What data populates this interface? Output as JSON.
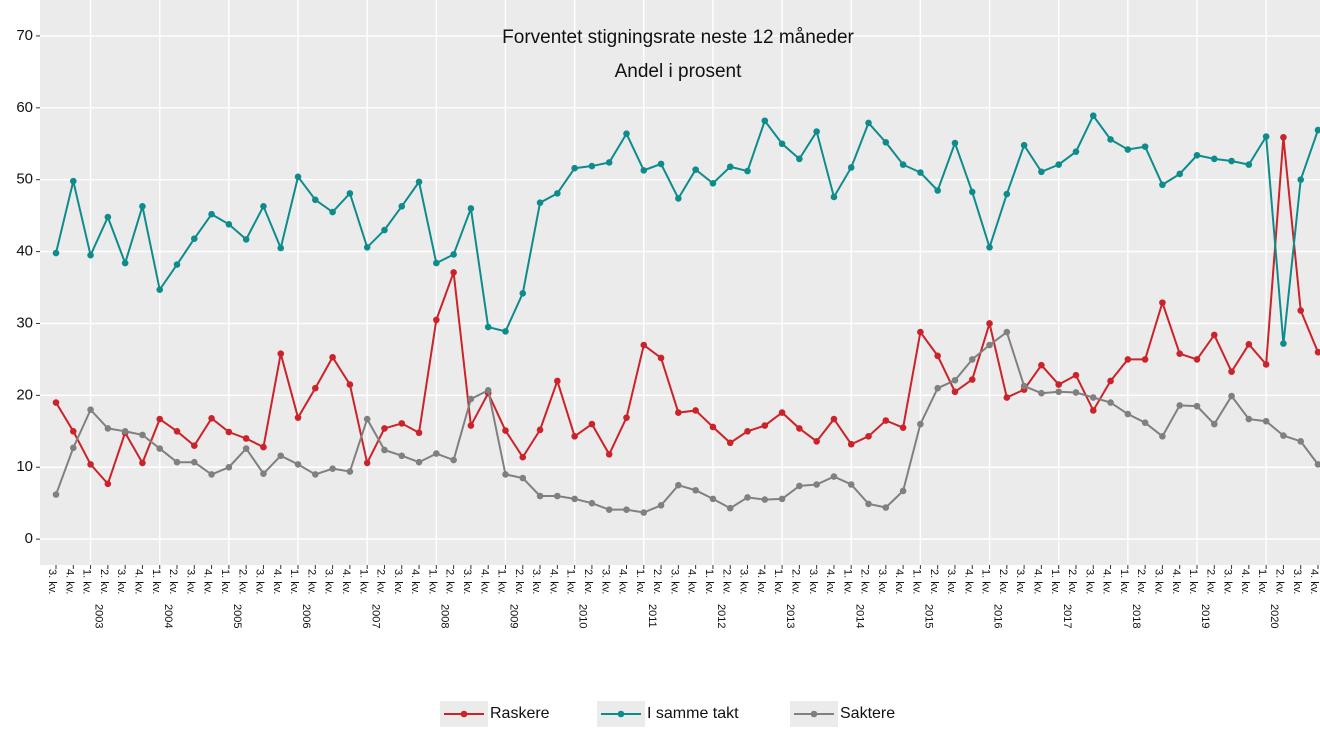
{
  "chart_data": {
    "type": "line",
    "title": "Forventet stigningsrate neste 12 måneder",
    "subtitle": "Andel i prosent",
    "categories": [
      "3. kv.",
      "4. kv.",
      "1. kv.",
      "2. kv.",
      "3. kv.",
      "4. kv.",
      "1. kv.",
      "2. kv.",
      "3. kv.",
      "4. kv.",
      "1. kv.",
      "2. kv.",
      "3. kv.",
      "4. kv.",
      "1. kv.",
      "2. kv.",
      "3. kv.",
      "4. kv.",
      "1. kv.",
      "2. kv.",
      "3. kv.",
      "4. kv.",
      "1. kv.",
      "2. kv.",
      "3. kv.",
      "4. kv.",
      "1. kv.",
      "2. kv.",
      "3. kv.",
      "4. kv.",
      "1. kv.",
      "2. kv.",
      "3. kv.",
      "4. kv.",
      "1. kv.",
      "2. kv.",
      "3. kv.",
      "4. kv.",
      "1. kv.",
      "2. kv.",
      "3. kv.",
      "4. kv.",
      "1. kv.",
      "2. kv.",
      "3. kv.",
      "4. kv.",
      "1. kv.",
      "2. kv.",
      "3. kv.",
      "4. kv.",
      "1. kv.",
      "2. kv.",
      "3. kv.",
      "4. kv.",
      "1. kv.",
      "2. kv.",
      "3. kv.",
      "4. kv.",
      "1. kv.",
      "2. kv.",
      "3. kv.",
      "4. kv.",
      "1. kv.",
      "2. kv.",
      "3. kv.",
      "4. kv.",
      "1. kv.",
      "2. kv.",
      "3. kv.",
      "4. kv.",
      "1. kv.",
      "2. kv.",
      "3. kv.",
      "4. kv."
    ],
    "years": [
      null,
      null,
      "2003",
      null,
      null,
      null,
      "2004",
      null,
      null,
      null,
      "2005",
      null,
      null,
      null,
      "2006",
      null,
      null,
      null,
      "2007",
      null,
      null,
      null,
      "2008",
      null,
      null,
      null,
      "2009",
      null,
      null,
      null,
      "2010",
      null,
      null,
      null,
      "2011",
      null,
      null,
      null,
      "2012",
      null,
      null,
      null,
      "2013",
      null,
      null,
      null,
      "2014",
      null,
      null,
      null,
      "2015",
      null,
      null,
      null,
      "2016",
      null,
      null,
      null,
      "2017",
      null,
      null,
      null,
      "2018",
      null,
      null,
      null,
      "2019",
      null,
      null,
      null,
      "2020",
      null,
      null,
      null
    ],
    "series": [
      {
        "name": "Raskere",
        "color": "#cc2229",
        "values": [
          19,
          15,
          10.4,
          7.7,
          14.8,
          10.6,
          16.7,
          15,
          13,
          16.8,
          14.9,
          14,
          12.8,
          25.8,
          16.9,
          21,
          25.3,
          21.5,
          10.6,
          15.4,
          16.1,
          14.8,
          30.5,
          37.1,
          15.8,
          20.3,
          15.1,
          11.4,
          15.2,
          22,
          14.3,
          16,
          11.8,
          16.9,
          27,
          25.2,
          17.6,
          17.9,
          15.6,
          13.4,
          15,
          15.8,
          17.6,
          15.4,
          13.6,
          16.7,
          13.2,
          14.3,
          16.5,
          15.5,
          28.8,
          25.5,
          20.5,
          22.2,
          30,
          19.7,
          20.8,
          24.2,
          21.5,
          22.8,
          17.9,
          22,
          25,
          25,
          32.9,
          25.8,
          25,
          28.4,
          23.3,
          27.1,
          24.3,
          55.9,
          31.8,
          26
        ]
      },
      {
        "name": "I samme takt",
        "color": "#0e8c8c",
        "values": [
          39.8,
          49.8,
          39.5,
          44.8,
          38.4,
          46.3,
          34.7,
          38.2,
          41.8,
          45.2,
          43.8,
          41.7,
          46.3,
          40.5,
          50.4,
          47.2,
          45.5,
          48.1,
          40.6,
          43,
          46.3,
          49.7,
          38.4,
          39.6,
          46,
          29.5,
          28.9,
          34.2,
          46.8,
          48.1,
          51.6,
          51.9,
          52.4,
          56.4,
          51.3,
          52.2,
          47.4,
          51.4,
          49.5,
          51.8,
          51.2,
          58.2,
          55,
          52.9,
          56.7,
          47.6,
          51.7,
          57.9,
          55.2,
          52.1,
          51,
          48.5,
          55.1,
          48.3,
          40.6,
          48,
          54.8,
          51.1,
          52.1,
          53.9,
          58.9,
          55.6,
          54.2,
          54.6,
          49.3,
          50.8,
          53.4,
          52.9,
          52.6,
          52.1,
          56,
          27.2,
          50,
          56.9
        ]
      },
      {
        "name": "Saktere",
        "color": "#808080",
        "values": [
          6.2,
          12.7,
          18,
          15.4,
          15,
          14.5,
          12.6,
          10.7,
          10.7,
          9,
          10,
          12.6,
          9.1,
          11.6,
          10.4,
          9,
          9.8,
          9.4,
          16.7,
          12.4,
          11.6,
          10.7,
          11.9,
          11,
          19.5,
          20.7,
          9,
          8.5,
          6,
          6,
          5.6,
          5,
          4.1,
          4.1,
          3.7,
          4.7,
          7.5,
          6.8,
          5.6,
          4.3,
          5.8,
          5.5,
          5.6,
          7.4,
          7.6,
          8.7,
          7.6,
          4.9,
          4.4,
          6.7,
          16,
          21,
          22.1,
          25,
          27,
          28.8,
          21.3,
          20.3,
          20.5,
          20.4,
          19.7,
          19,
          17.4,
          16.2,
          14.3,
          18.6,
          18.5,
          16,
          19.9,
          16.7,
          16.4,
          14.4,
          13.6,
          10.4
        ]
      }
    ],
    "ylim": [
      -3.6,
      75
    ],
    "yticks": [
      0,
      10,
      20,
      30,
      40,
      50,
      60,
      70
    ],
    "grid": true,
    "legend": "bottom"
  }
}
